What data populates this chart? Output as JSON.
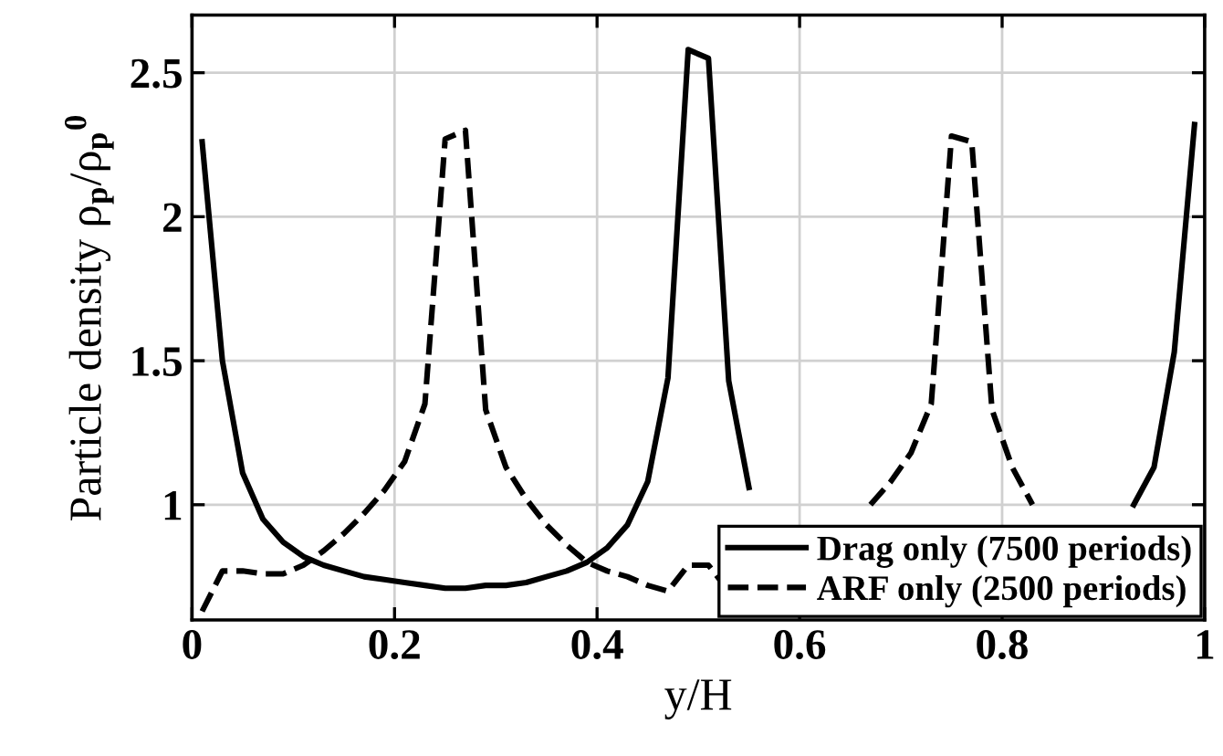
{
  "chart_data": {
    "type": "line",
    "xlabel": "y/H",
    "ylabel": "Particle density ρ$_{p}$/ρ$_{p}$$^{0}$",
    "x": [
      0.01,
      0.03,
      0.05,
      0.07,
      0.09,
      0.11,
      0.13,
      0.15,
      0.17,
      0.19,
      0.21,
      0.23,
      0.25,
      0.27,
      0.29,
      0.31,
      0.33,
      0.35,
      0.37,
      0.39,
      0.41,
      0.43,
      0.45,
      0.47,
      0.49,
      0.51,
      0.53,
      0.55,
      0.57,
      0.59,
      0.61,
      0.63,
      0.65,
      0.67,
      0.69,
      0.71,
      0.73,
      0.75,
      0.77,
      0.79,
      0.81,
      0.83,
      0.85,
      0.87,
      0.89,
      0.91,
      0.93,
      0.95,
      0.97,
      0.99
    ],
    "series": [
      {
        "name": "Drag only (7500 periods)",
        "color": "#000000",
        "line_style": "solid",
        "values": [
          2.26,
          1.5,
          1.11,
          0.95,
          0.87,
          0.82,
          0.79,
          0.77,
          0.75,
          0.74,
          0.73,
          0.72,
          0.71,
          0.71,
          0.72,
          0.72,
          0.73,
          0.75,
          0.77,
          0.8,
          0.85,
          0.93,
          1.08,
          1.44,
          2.58,
          2.55,
          1.43,
          1.06,
          null,
          null,
          null,
          null,
          null,
          null,
          null,
          null,
          null,
          null,
          null,
          null,
          null,
          null,
          null,
          null,
          null,
          null,
          1.0,
          1.13,
          1.53,
          2.32
        ]
      },
      {
        "name": "ARF only (2500 periods)",
        "color": "#000000",
        "line_style": "dashed",
        "values": [
          0.63,
          0.77,
          0.77,
          0.76,
          0.76,
          0.79,
          0.84,
          0.9,
          0.97,
          1.05,
          1.15,
          1.35,
          2.27,
          2.3,
          1.33,
          1.13,
          1.02,
          0.93,
          0.86,
          0.8,
          0.77,
          0.75,
          0.72,
          0.7,
          0.79,
          0.79,
          0.7,
          null,
          null,
          null,
          null,
          null,
          null,
          1.0,
          1.08,
          1.18,
          1.35,
          2.28,
          2.26,
          1.33,
          1.13,
          1.0,
          null,
          null,
          null,
          null,
          null,
          null,
          null,
          null
        ]
      }
    ],
    "xlim": [
      0,
      1
    ],
    "ylim": [
      0.6,
      2.7
    ],
    "xticks": [
      0,
      0.2,
      0.4,
      0.6,
      0.8,
      1
    ],
    "yticks": [
      1,
      1.5,
      2,
      2.5
    ],
    "grid": true,
    "legend": "bottom right",
    "marker": "none"
  }
}
